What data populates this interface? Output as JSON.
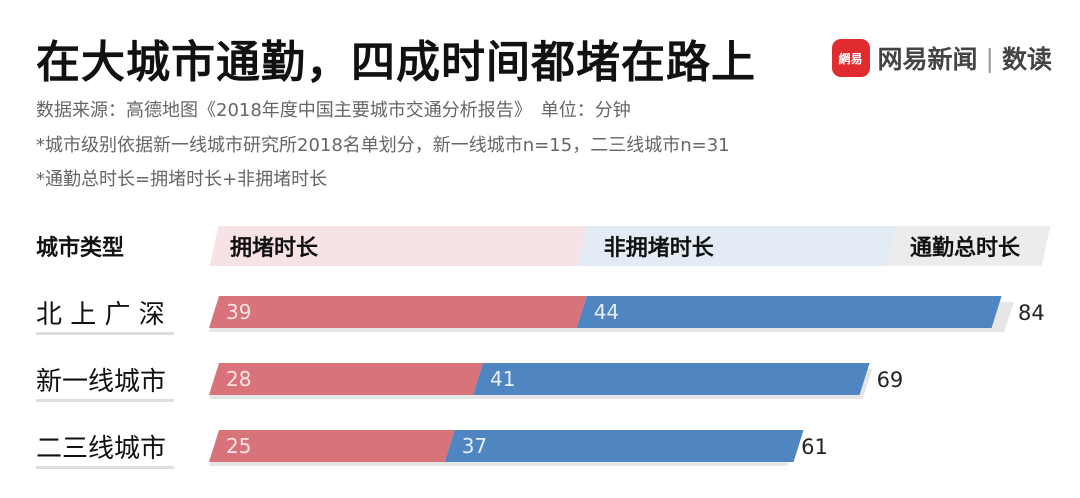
{
  "title": "在大城市通勤，四成时间都堵在路上",
  "source_note": "数据来源：高德地图《2018年度中国主要城市交通分析报告》　单位：分钟",
  "notes": [
    "*城市级别依据新一线城市研究所2018名单划分，新一线城市n=15，二三线城市n=31",
    "*通勤总时长=拥堵时长+非拥堵时长"
  ],
  "brand": {
    "badge": "網易",
    "name": "网易新闻",
    "separator": "|",
    "sub": "数读"
  },
  "headers": {
    "category": "城市类型",
    "congested": "拥堵时长",
    "free": "非拥堵时长",
    "total": "通勤总时长"
  },
  "colors": {
    "congested": "#d9737a",
    "free": "#4f86c2",
    "congested_header": "#f7e3e5",
    "free_header": "#e3ebf4",
    "total_header": "#ececec"
  },
  "chart_data": {
    "type": "bar",
    "orientation": "horizontal",
    "stacked": true,
    "categories": [
      "北 上 广 深",
      "新一线城市",
      "二三线城市"
    ],
    "series": [
      {
        "name": "拥堵时长",
        "values": [
          39,
          28,
          25
        ]
      },
      {
        "name": "非拥堵时长",
        "values": [
          44,
          41,
          37
        ]
      }
    ],
    "totals": [
      84,
      69,
      61
    ],
    "total_label": "通勤总时长",
    "xlim": [
      0,
      84
    ],
    "grid": false
  }
}
